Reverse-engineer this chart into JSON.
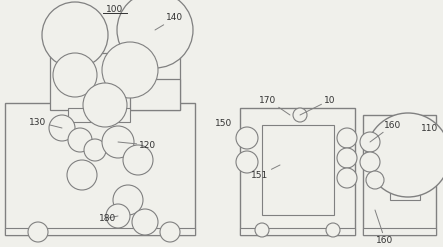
{
  "bg_color": "#f0f0eb",
  "line_color": "#808080",
  "text_color": "#333333",
  "fig_width": 4.43,
  "fig_height": 2.47,
  "dpi": 100
}
